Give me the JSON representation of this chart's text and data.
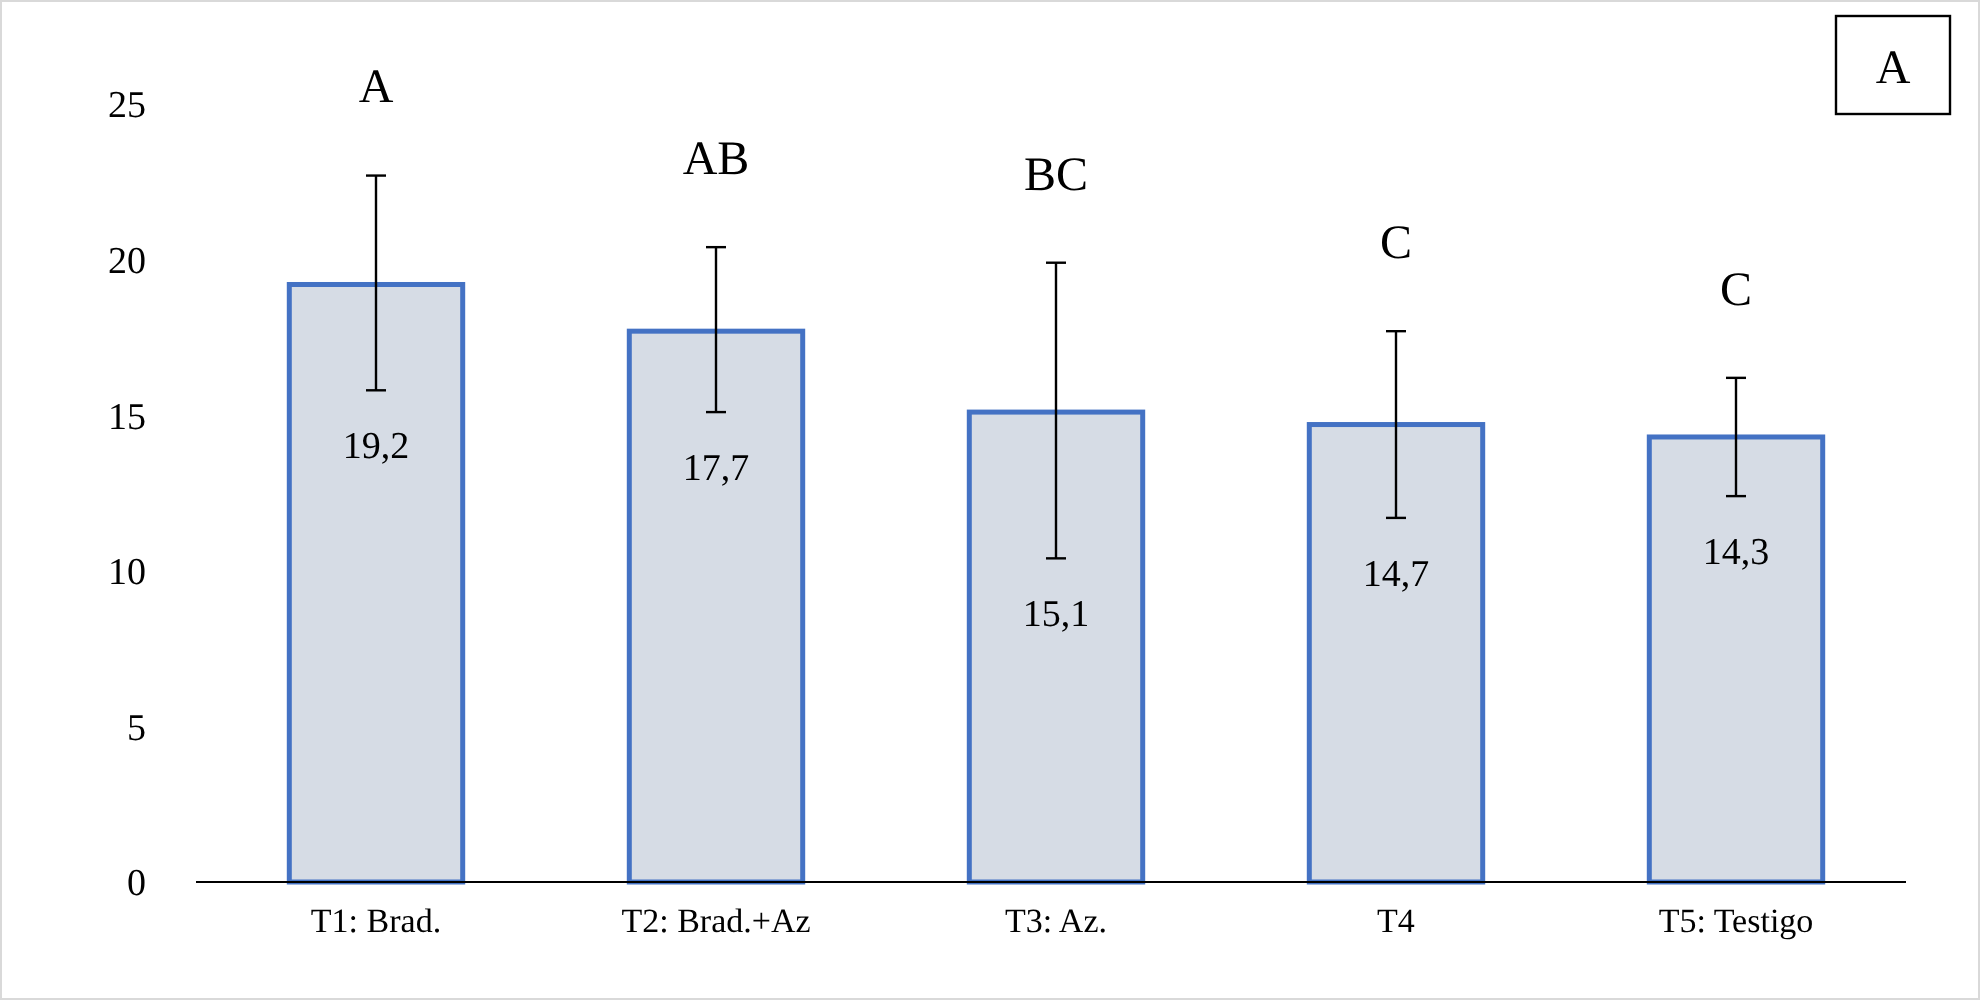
{
  "chart_data": {
    "type": "bar",
    "categories": [
      "T1: Brad.",
      "T2: Brad.+Az",
      "T3: Az.",
      "T4",
      "T5: Testigo"
    ],
    "values": [
      19.2,
      17.7,
      15.1,
      14.7,
      14.3
    ],
    "errors": [
      [
        15.8,
        22.7
      ],
      [
        15.1,
        20.4
      ],
      [
        10.4,
        19.9
      ],
      [
        11.7,
        17.7
      ],
      [
        12.4,
        16.2
      ]
    ],
    "value_labels": [
      "19,2",
      "17,7",
      "15,1",
      "14,7",
      "14,3"
    ],
    "color": "#d6dce5",
    "ylim": [
      0,
      25
    ],
    "yticks": [
      0,
      5,
      10,
      15,
      20,
      25
    ],
    "grid": false,
    "annotations": [
      "A",
      "A",
      "AB",
      "BC",
      "C",
      "C"
    ]
  }
}
